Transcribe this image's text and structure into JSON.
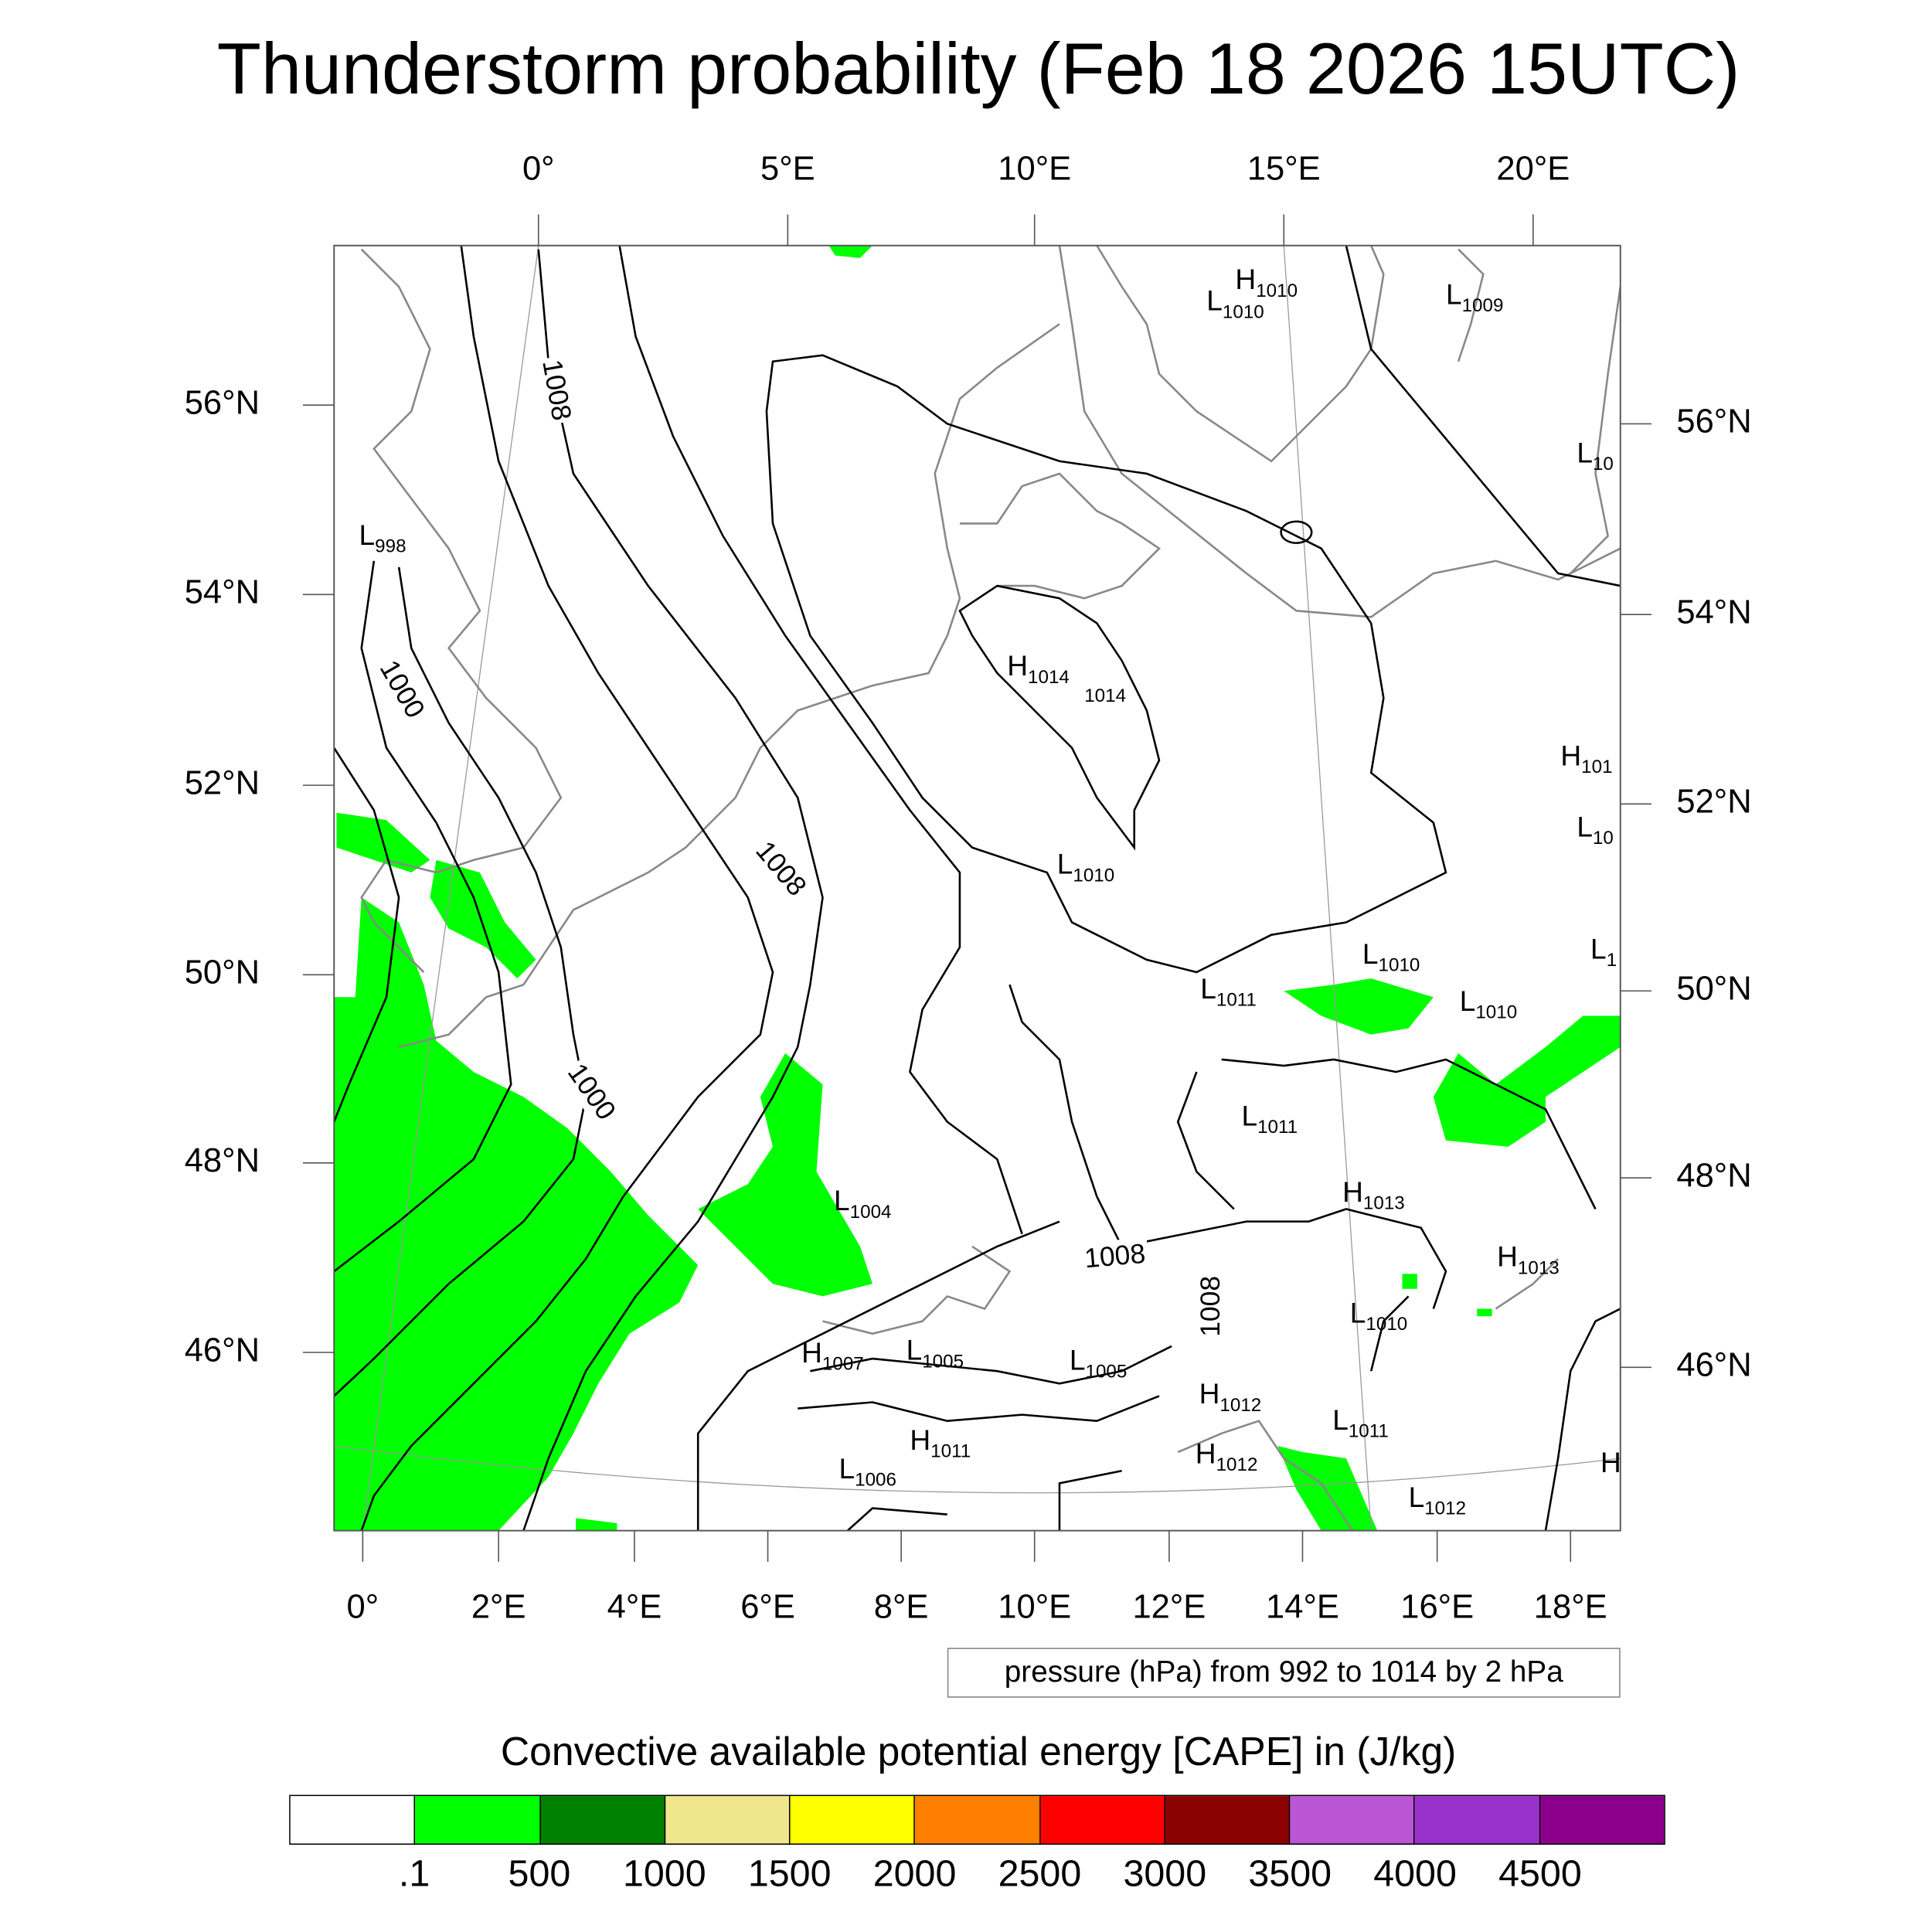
{
  "title": "Thunderstorm probability (Feb 18 2026 15UTC)",
  "top_lon_labels": [
    "0°",
    "5°E",
    "10°E",
    "15°E",
    "20°E"
  ],
  "bottom_lon_labels": [
    "0°",
    "2°E",
    "4°E",
    "6°E",
    "8°E",
    "10°E",
    "12°E",
    "14°E",
    "16°E",
    "18°E"
  ],
  "left_lat_labels": [
    "56°N",
    "54°N",
    "52°N",
    "50°N",
    "48°N",
    "46°N"
  ],
  "right_lat_labels": [
    "56°N",
    "54°N",
    "52°N",
    "50°N",
    "48°N",
    "46°N"
  ],
  "pressure_centers": [
    {
      "t": "L",
      "v": "998"
    },
    {
      "t": "H",
      "v": "1010"
    },
    {
      "t": "L",
      "v": "1010"
    },
    {
      "t": "L",
      "v": "1009"
    },
    {
      "t": "L",
      "v": "10"
    },
    {
      "t": "H",
      "v": "1014"
    },
    {
      "t": "",
      "v": "1014"
    },
    {
      "t": "H",
      "v": "101"
    },
    {
      "t": "L",
      "v": "10"
    },
    {
      "t": "L",
      "v": "1010"
    },
    {
      "t": "L",
      "v": "1"
    },
    {
      "t": "L",
      "v": "1010"
    },
    {
      "t": "L",
      "v": "1011"
    },
    {
      "t": "L",
      "v": "1010"
    },
    {
      "t": "L",
      "v": "1011"
    },
    {
      "t": "H",
      "v": "1013"
    },
    {
      "t": "L",
      "v": "1004"
    },
    {
      "t": "H",
      "v": "1013"
    },
    {
      "t": "L",
      "v": "1010"
    },
    {
      "t": "H",
      "v": "1007"
    },
    {
      "t": "L",
      "v": "1005"
    },
    {
      "t": "L",
      "v": "1005"
    },
    {
      "t": "H",
      "v": "1012"
    },
    {
      "t": "L",
      "v": "1011"
    },
    {
      "t": "H",
      "v": "1011"
    },
    {
      "t": "H",
      "v": "1012"
    },
    {
      "t": "L",
      "v": "1006"
    },
    {
      "t": "L",
      "v": "1012"
    },
    {
      "t": "H",
      "v": ""
    }
  ],
  "contour_labels": [
    "1008",
    "1000",
    "1008",
    "1000",
    "1008",
    "1008"
  ],
  "pressure_note": "pressure (hPa) from 992 to 1014 by 2 hPa",
  "chart_data": {
    "type": "heatmap",
    "title": "Thunderstorm probability (Feb 18 2026 15UTC)",
    "colorbar_title": "Convective available potential energy [CAPE] in (J/kg)",
    "colorbar_levels": [
      ".1",
      "500",
      "1000",
      "1500",
      "2000",
      "2500",
      "3000",
      "3500",
      "4000",
      "4500"
    ],
    "colorbar_colors": [
      "#ffffff",
      "#00ff00",
      "#008000",
      "#f0e68c",
      "#ffff00",
      "#ff8000",
      "#ff0000",
      "#8b0000",
      "#ba55d3",
      "#9932cc",
      "#8b008b"
    ],
    "contour_variable": "pressure (hPa)",
    "contour_range": [
      992,
      1014
    ],
    "contour_interval": 2,
    "lon_range": [
      -0.5,
      18.7
    ],
    "lat_range": [
      44.5,
      57.5
    ]
  }
}
